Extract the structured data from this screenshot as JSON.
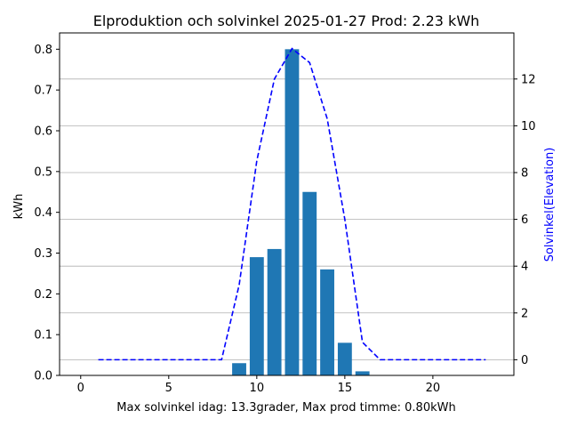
{
  "chart_data": {
    "type": "bar",
    "title": "Elproduktion och solvinkel 2025-01-27 Prod: 2.23 kWh",
    "xlabel": "Max solvinkel idag: 13.3grader, Max prod timme: 0.80kWh",
    "ylabel": "kWh",
    "y2label": "Solvinkel(Elevation)",
    "xlim": [
      -1.2,
      24.6
    ],
    "ylim": [
      0,
      0.84
    ],
    "y2lim": [
      -0.67,
      13.97
    ],
    "xticks": [
      0,
      5,
      10,
      15,
      20
    ],
    "yticks": [
      0.0,
      0.1,
      0.2,
      0.3,
      0.4,
      0.5,
      0.6,
      0.7,
      0.8
    ],
    "y2ticks": [
      0,
      2,
      4,
      6,
      8,
      10,
      12
    ],
    "grid": "right-axis horizontal",
    "bar_color": "#1f77b4",
    "line_color": "#0000ff",
    "line_style": "dashed",
    "bars": {
      "x": [
        9,
        10,
        11,
        12,
        13,
        14,
        15,
        16
      ],
      "values": [
        0.03,
        0.29,
        0.31,
        0.8,
        0.45,
        0.26,
        0.08,
        0.01
      ]
    },
    "line": {
      "x": [
        1,
        2,
        3,
        4,
        5,
        6,
        7,
        8,
        9,
        10,
        11,
        12,
        13,
        14,
        15,
        16,
        17,
        18,
        19,
        20,
        21,
        22,
        23
      ],
      "values": [
        0,
        0,
        0,
        0,
        0,
        0,
        0,
        0,
        3.2,
        8.5,
        12.0,
        13.3,
        12.7,
        10.3,
        6.0,
        0.75,
        0,
        0,
        0,
        0,
        0,
        0,
        0
      ]
    }
  }
}
